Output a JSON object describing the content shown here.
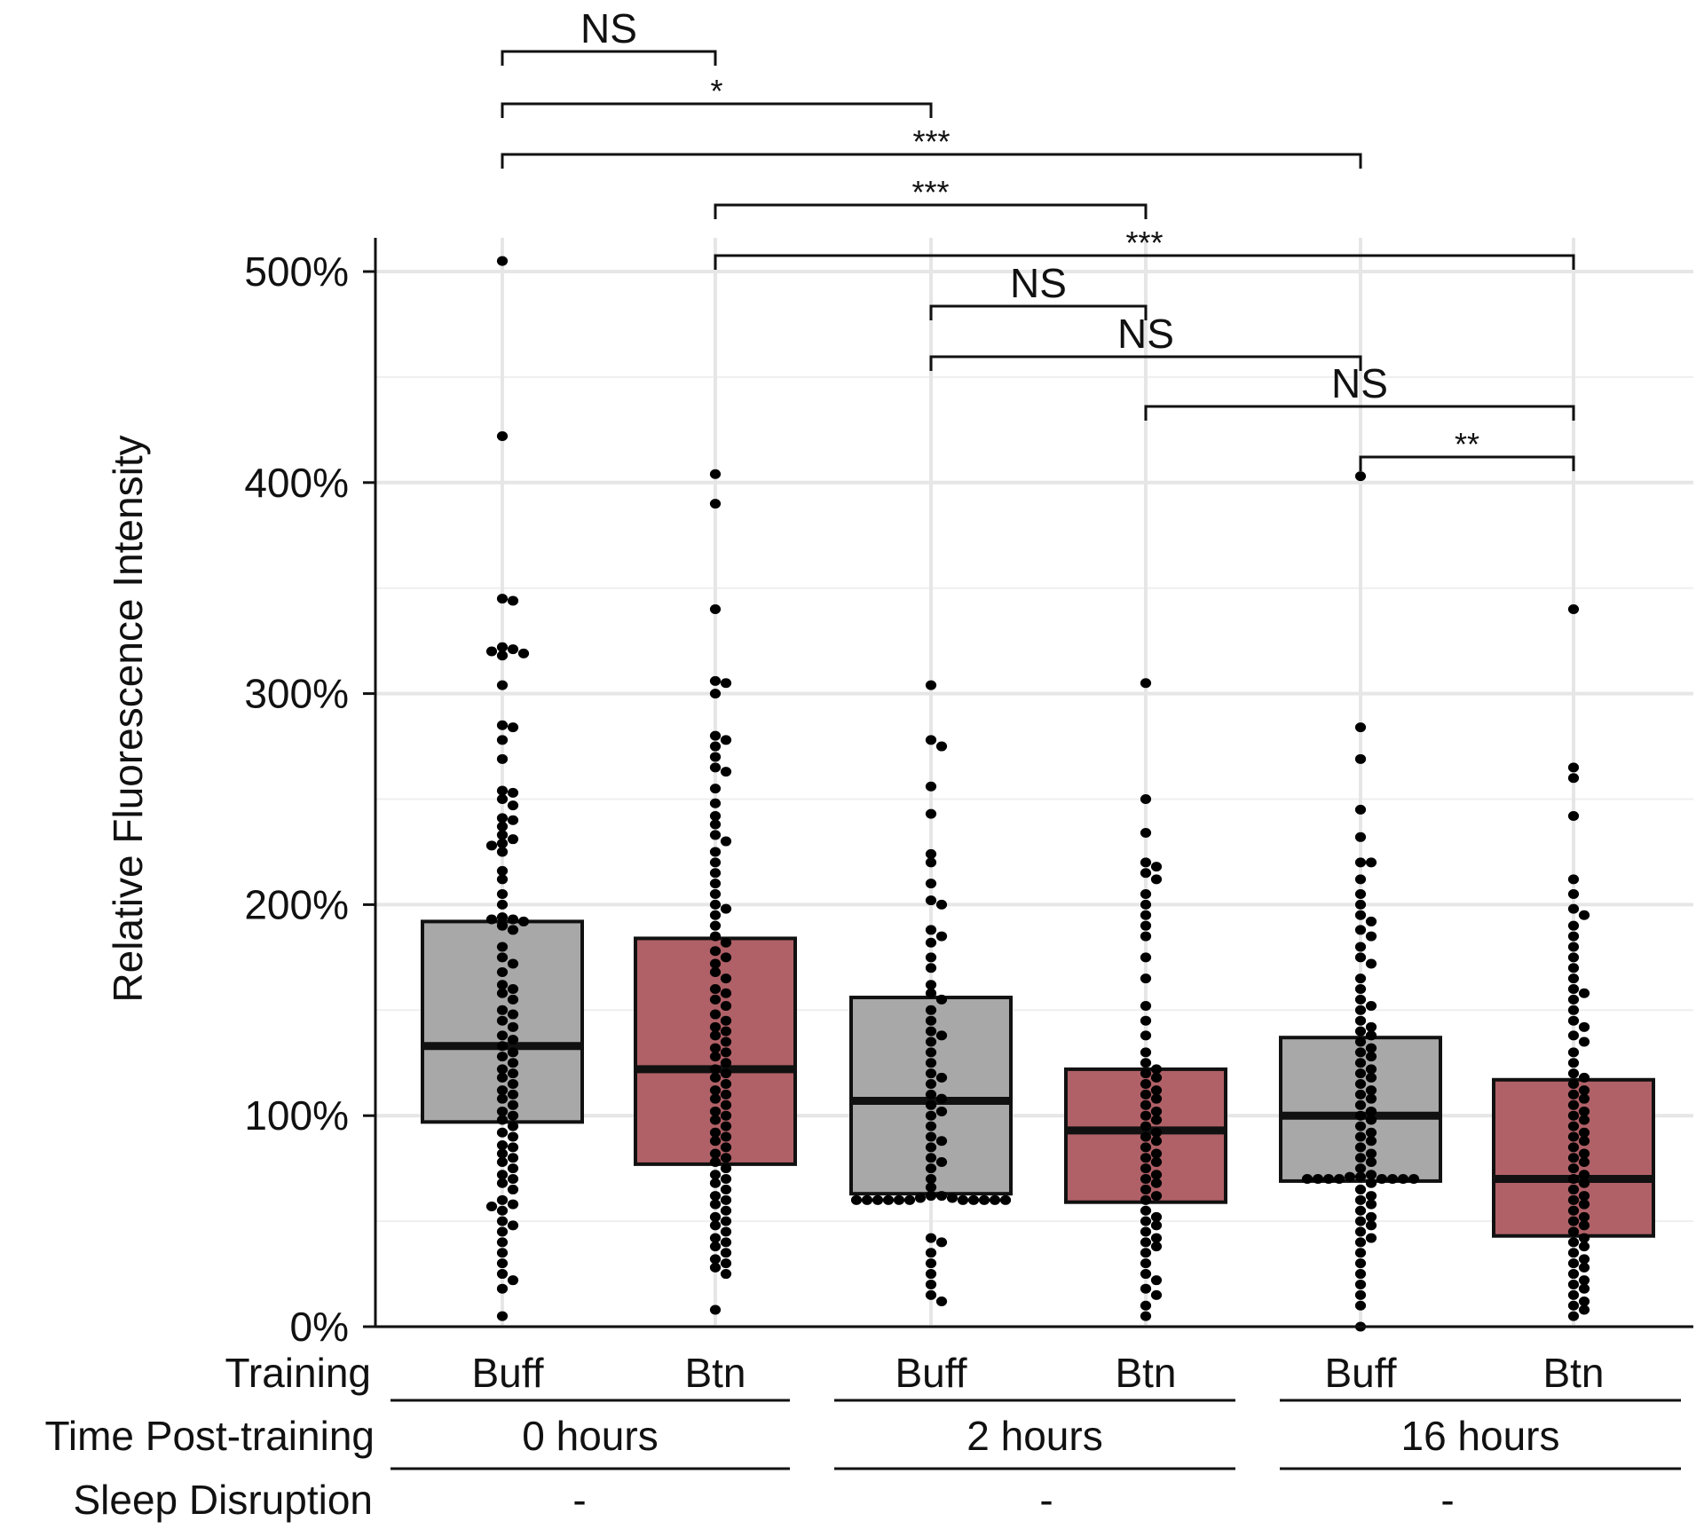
{
  "chart_data": {
    "type": "box",
    "title": "",
    "xlabel": "",
    "ylabel": "Relative Fluorescence Intensity",
    "ylim": [
      0,
      5.2
    ],
    "yticks": [
      {
        "value": 0,
        "label": "0%"
      },
      {
        "value": 1,
        "label": "100%"
      },
      {
        "value": 2,
        "label": "200%"
      },
      {
        "value": 3,
        "label": "300%"
      },
      {
        "value": 4,
        "label": "400%"
      },
      {
        "value": 5,
        "label": "500%"
      }
    ],
    "grid": true,
    "groups": [
      {
        "training": "Buff",
        "time": "0 hours",
        "fill": "#a8a8a8",
        "q1": 0.97,
        "median": 1.33,
        "q3": 1.92,
        "points": [
          5.05,
          4.22,
          3.45,
          3.44,
          3.22,
          3.21,
          3.2,
          3.19,
          3.18,
          3.04,
          2.85,
          2.84,
          2.78,
          2.69,
          2.54,
          2.53,
          2.5,
          2.47,
          2.41,
          2.4,
          2.37,
          2.33,
          2.31,
          2.29,
          2.28,
          2.25,
          2.16,
          2.12,
          2.05,
          2.0,
          1.94,
          1.93,
          1.93,
          1.92,
          1.9,
          1.88,
          1.8,
          1.75,
          1.72,
          1.68,
          1.62,
          1.6,
          1.58,
          1.55,
          1.5,
          1.48,
          1.45,
          1.42,
          1.38,
          1.36,
          1.33,
          1.3,
          1.28,
          1.25,
          1.22,
          1.2,
          1.18,
          1.15,
          1.12,
          1.1,
          1.08,
          1.05,
          1.02,
          1.0,
          0.98,
          0.95,
          0.92,
          0.9,
          0.86,
          0.85,
          0.82,
          0.8,
          0.78,
          0.75,
          0.72,
          0.7,
          0.68,
          0.65,
          0.6,
          0.58,
          0.57,
          0.55,
          0.5,
          0.48,
          0.45,
          0.4,
          0.35,
          0.3,
          0.25,
          0.22,
          0.18,
          0.05
        ]
      },
      {
        "training": "Btn",
        "time": "0 hours",
        "fill": "#b06167",
        "q1": 0.77,
        "median": 1.22,
        "q3": 1.84,
        "points": [
          4.04,
          3.9,
          3.4,
          3.06,
          3.05,
          3.0,
          2.8,
          2.78,
          2.75,
          2.7,
          2.65,
          2.63,
          2.55,
          2.48,
          2.42,
          2.38,
          2.33,
          2.3,
          2.25,
          2.2,
          2.15,
          2.1,
          2.05,
          2.0,
          1.98,
          1.95,
          1.9,
          1.85,
          1.82,
          1.78,
          1.75,
          1.72,
          1.68,
          1.65,
          1.6,
          1.58,
          1.55,
          1.52,
          1.48,
          1.45,
          1.42,
          1.4,
          1.38,
          1.35,
          1.32,
          1.3,
          1.28,
          1.25,
          1.22,
          1.2,
          1.18,
          1.15,
          1.12,
          1.1,
          1.08,
          1.05,
          1.02,
          1.0,
          0.98,
          0.95,
          0.92,
          0.9,
          0.88,
          0.85,
          0.82,
          0.8,
          0.78,
          0.75,
          0.72,
          0.7,
          0.68,
          0.65,
          0.62,
          0.6,
          0.58,
          0.55,
          0.52,
          0.5,
          0.48,
          0.45,
          0.42,
          0.4,
          0.38,
          0.35,
          0.32,
          0.3,
          0.28,
          0.25,
          0.08
        ]
      },
      {
        "training": "Buff",
        "time": "2 hours",
        "fill": "#a8a8a8",
        "q1": 0.63,
        "median": 1.07,
        "q3": 1.56,
        "points": [
          3.04,
          2.78,
          2.75,
          2.56,
          2.43,
          2.24,
          2.2,
          2.1,
          2.02,
          2.0,
          1.88,
          1.85,
          1.82,
          1.75,
          1.7,
          1.62,
          1.58,
          1.55,
          1.5,
          1.45,
          1.4,
          1.38,
          1.35,
          1.3,
          1.25,
          1.2,
          1.18,
          1.15,
          1.1,
          1.08,
          1.05,
          1.02,
          1.0,
          0.95,
          0.9,
          0.88,
          0.85,
          0.8,
          0.78,
          0.75,
          0.7,
          0.66,
          0.62,
          0.62,
          0.61,
          0.61,
          0.6,
          0.6,
          0.6,
          0.6,
          0.6,
          0.6,
          0.6,
          0.6,
          0.6,
          0.6,
          0.6,
          0.42,
          0.4,
          0.35,
          0.3,
          0.25,
          0.2,
          0.15,
          0.12
        ]
      },
      {
        "training": "Btn",
        "time": "2 hours",
        "fill": "#b06167",
        "q1": 0.59,
        "median": 0.93,
        "q3": 1.22,
        "points": [
          3.05,
          2.5,
          2.34,
          2.2,
          2.18,
          2.15,
          2.12,
          2.05,
          2.0,
          1.95,
          1.9,
          1.85,
          1.75,
          1.65,
          1.52,
          1.45,
          1.38,
          1.3,
          1.25,
          1.22,
          1.2,
          1.18,
          1.15,
          1.12,
          1.1,
          1.08,
          1.05,
          1.02,
          1.0,
          0.98,
          0.95,
          0.92,
          0.9,
          0.88,
          0.85,
          0.82,
          0.8,
          0.78,
          0.75,
          0.72,
          0.7,
          0.68,
          0.65,
          0.62,
          0.6,
          0.55,
          0.52,
          0.5,
          0.48,
          0.45,
          0.42,
          0.4,
          0.38,
          0.35,
          0.3,
          0.25,
          0.22,
          0.18,
          0.15,
          0.1,
          0.05
        ]
      },
      {
        "training": "Buff",
        "time": "16 hours",
        "fill": "#a8a8a8",
        "q1": 0.69,
        "median": 1.0,
        "q3": 1.37,
        "points": [
          4.03,
          2.84,
          2.69,
          2.45,
          2.32,
          2.2,
          2.2,
          2.12,
          2.05,
          2.0,
          1.95,
          1.92,
          1.88,
          1.85,
          1.8,
          1.75,
          1.72,
          1.65,
          1.6,
          1.55,
          1.52,
          1.5,
          1.45,
          1.42,
          1.4,
          1.38,
          1.35,
          1.32,
          1.3,
          1.28,
          1.25,
          1.22,
          1.2,
          1.18,
          1.15,
          1.12,
          1.1,
          1.08,
          1.05,
          1.02,
          1.0,
          0.98,
          0.95,
          0.92,
          0.9,
          0.88,
          0.85,
          0.82,
          0.8,
          0.78,
          0.75,
          0.72,
          0.71,
          0.71,
          0.7,
          0.7,
          0.7,
          0.7,
          0.7,
          0.7,
          0.7,
          0.7,
          0.68,
          0.65,
          0.62,
          0.6,
          0.58,
          0.55,
          0.52,
          0.5,
          0.48,
          0.45,
          0.42,
          0.4,
          0.35,
          0.3,
          0.25,
          0.2,
          0.15,
          0.1,
          0.0
        ]
      },
      {
        "training": "Btn",
        "time": "16 hours",
        "fill": "#b06167",
        "q1": 0.43,
        "median": 0.7,
        "q3": 1.17,
        "points": [
          3.4,
          2.65,
          2.6,
          2.42,
          2.12,
          2.05,
          1.98,
          1.95,
          1.9,
          1.85,
          1.8,
          1.75,
          1.7,
          1.65,
          1.6,
          1.58,
          1.55,
          1.5,
          1.45,
          1.42,
          1.38,
          1.35,
          1.3,
          1.25,
          1.2,
          1.18,
          1.15,
          1.12,
          1.1,
          1.08,
          1.05,
          1.02,
          1.0,
          0.98,
          0.95,
          0.92,
          0.9,
          0.88,
          0.85,
          0.82,
          0.8,
          0.78,
          0.75,
          0.72,
          0.7,
          0.68,
          0.65,
          0.62,
          0.6,
          0.58,
          0.55,
          0.52,
          0.5,
          0.48,
          0.45,
          0.42,
          0.4,
          0.38,
          0.35,
          0.32,
          0.3,
          0.28,
          0.25,
          0.22,
          0.2,
          0.18,
          0.15,
          0.12,
          0.1,
          0.08,
          0.05
        ]
      }
    ],
    "row_labels": {
      "training": "Training",
      "time": "Time Post-training",
      "sleep": "Sleep Disruption"
    },
    "time_groups": [
      {
        "label": "0 hours",
        "sleep": "-"
      },
      {
        "label": "2 hours",
        "sleep": "-"
      },
      {
        "label": "16 hours",
        "sleep": "-"
      }
    ],
    "comparisons": [
      {
        "from": 0,
        "to": 1,
        "label": "NS"
      },
      {
        "from": 0,
        "to": 2,
        "label": "*"
      },
      {
        "from": 0,
        "to": 4,
        "label": "***"
      },
      {
        "from": 1,
        "to": 3,
        "label": "***"
      },
      {
        "from": 1,
        "to": 5,
        "label": "***"
      },
      {
        "from": 2,
        "to": 3,
        "label": "NS"
      },
      {
        "from": 2,
        "to": 4,
        "label": "NS"
      },
      {
        "from": 3,
        "to": 5,
        "label": "NS"
      },
      {
        "from": 4,
        "to": 5,
        "label": "**"
      }
    ]
  }
}
